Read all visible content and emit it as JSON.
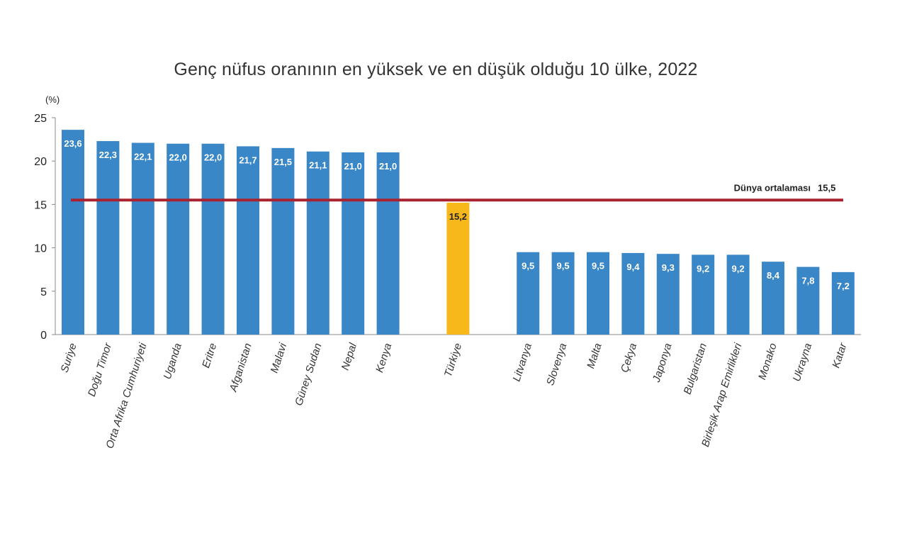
{
  "chart_data": {
    "type": "bar",
    "title": "Genç nüfus oranının en yüksek ve en düşük olduğu 10 ülke, 2022",
    "ylabel": "(%)",
    "ylim": [
      0,
      25
    ],
    "yticks": [
      "0",
      "5",
      "10",
      "15",
      "20",
      "25"
    ],
    "grid": false,
    "categories": [
      "Suriye",
      "Doğu Timor",
      "Orta Afrika Cumhuriyeti",
      "Uganda",
      "Eritre",
      "Afganistan",
      "Malavi",
      "Güney Sudan",
      "Nepal",
      "Kenya",
      "Türkiye",
      "Litvanya",
      "Slovenya",
      "Malta",
      "Çekya",
      "Japonya",
      "Bulgaristan",
      "Birleşik Arap Emirlikleri",
      "Monako",
      "Ukrayna",
      "Katar"
    ],
    "values": [
      23.6,
      22.3,
      22.1,
      22.0,
      22.0,
      21.7,
      21.5,
      21.1,
      21.0,
      21.0,
      15.2,
      9.5,
      9.5,
      9.5,
      9.4,
      9.3,
      9.2,
      9.2,
      8.4,
      7.8,
      7.2
    ],
    "value_labels": [
      "23,6",
      "22,3",
      "22,1",
      "22,0",
      "22,0",
      "21,7",
      "21,5",
      "21,1",
      "21,0",
      "21,0",
      "15,2",
      "9,5",
      "9,5",
      "9,5",
      "9,4",
      "9,3",
      "9,2",
      "9,2",
      "8,4",
      "7,8",
      "7,2"
    ],
    "highlight": "Türkiye",
    "reference_line": {
      "label": "Dünya ortalaması",
      "value": 15.5,
      "value_label": "15,5"
    },
    "colors": {
      "bar": "#3a87c8",
      "highlight": "#f7b81b",
      "reference": "#a8232f",
      "axis": "#888888"
    }
  }
}
